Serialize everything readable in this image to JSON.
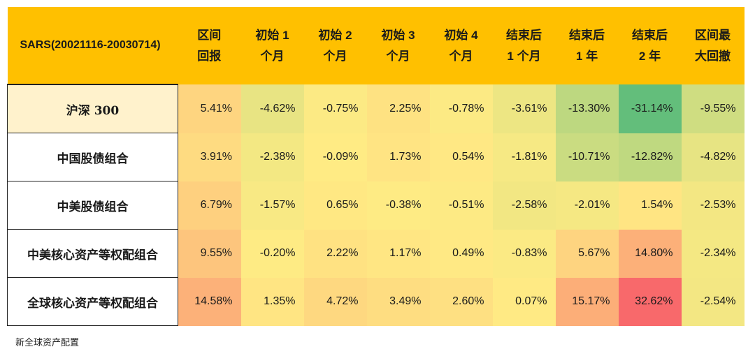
{
  "source_note": "新全球资产配置",
  "chart_data": {
    "type": "heatmap",
    "corner_label": "SARS(20021116-20030714)",
    "columns": [
      [
        "区间",
        "回报"
      ],
      [
        "初始 1",
        "个月"
      ],
      [
        "初始 2",
        "个月"
      ],
      [
        "初始 3",
        "个月"
      ],
      [
        "初始 4",
        "个月"
      ],
      [
        "结束后",
        "1 个月"
      ],
      [
        "结束后",
        "1 年"
      ],
      [
        "结束后",
        "2 年"
      ],
      [
        "区间最",
        "大回撤"
      ]
    ],
    "rows": [
      {
        "label": "沪深 300",
        "values": [
          5.41,
          -4.62,
          -0.75,
          2.25,
          -0.78,
          -3.61,
          -13.3,
          -31.14,
          -9.55
        ]
      },
      {
        "label": "中国股债组合",
        "values": [
          3.91,
          -2.38,
          -0.09,
          1.73,
          0.54,
          -1.81,
          -10.71,
          -12.82,
          -4.82
        ]
      },
      {
        "label": "中美股债组合",
        "values": [
          6.79,
          -1.57,
          0.65,
          -0.38,
          -0.51,
          -2.58,
          -2.01,
          1.54,
          -2.53
        ]
      },
      {
        "label": "中美核心资产等权配组合",
        "values": [
          9.55,
          -0.2,
          2.22,
          1.17,
          0.49,
          -0.83,
          5.67,
          14.8,
          -2.34
        ]
      },
      {
        "label": "全球核心资产等权配组合",
        "values": [
          14.58,
          1.35,
          4.72,
          3.49,
          2.6,
          0.07,
          15.17,
          32.62,
          -2.54
        ]
      }
    ],
    "value_format": "percent_2dp",
    "colors": {
      "header_bg": "#FFC000",
      "label_bg_first": "#FFF2CC",
      "label_bg_other": "#FFFFFF",
      "scale_low": "#63BE7B",
      "scale_mid": "#FFEB84",
      "scale_high": "#F8696B"
    }
  }
}
